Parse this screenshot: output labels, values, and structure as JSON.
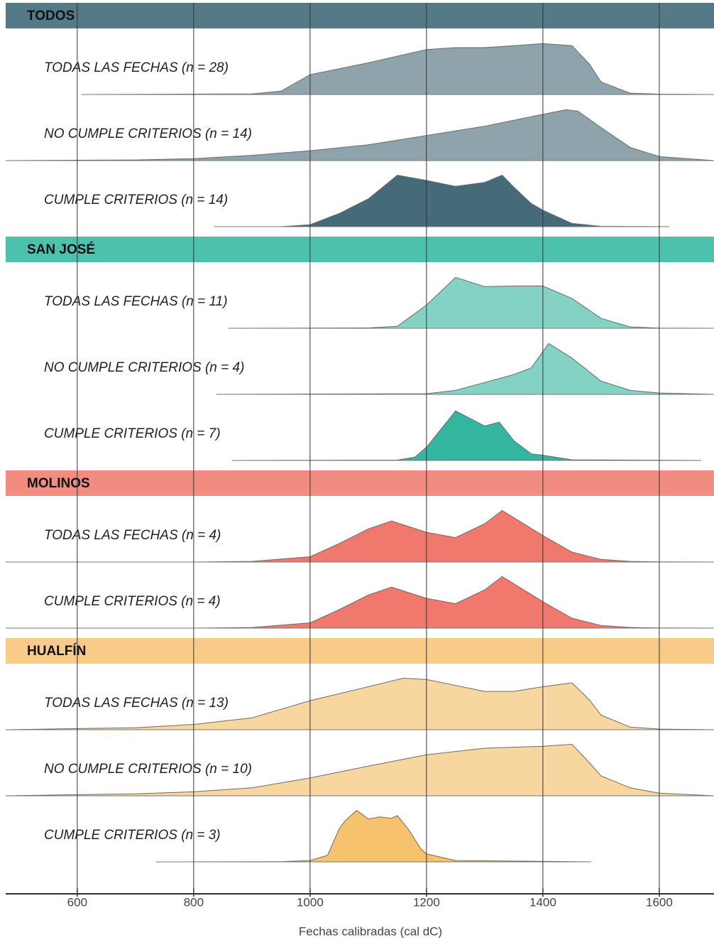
{
  "chart_data": {
    "type": "ridgeline",
    "xlabel": "Fechas calibradas (cal dC)",
    "xlim": [
      477,
      1694
    ],
    "xticks": [
      600,
      800,
      1000,
      1200,
      1400,
      1600
    ],
    "ylim": [
      0,
      100
    ],
    "grid": true,
    "groups": [
      {
        "name": "TODOS",
        "color": "#557a87",
        "rows": [
          {
            "label": "TODAS LAS FECHAS (n = 28)",
            "color": "#8ea3ab",
            "x": [
              607,
              900,
              950,
              1000,
              1100,
              1200,
              1250,
              1300,
              1350,
              1400,
              1450,
              1480,
              1500,
              1550,
              1600,
              1694
            ],
            "values": [
              0,
              1,
              5,
              30,
              48,
              68,
              71,
              71,
              74,
              77,
              74,
              46,
              19,
              2,
              0.5,
              0
            ]
          },
          {
            "label": "NO CUMPLE CRITERIOS (n = 14)",
            "color": "#8ea3ab",
            "x": [
              477,
              700,
              800,
              900,
              1000,
              1100,
              1200,
              1300,
              1400,
              1440,
              1460,
              1500,
              1550,
              1600,
              1694
            ],
            "values": [
              0,
              1,
              3,
              8,
              15,
              24,
              38,
              52,
              70,
              77,
              75,
              50,
              20,
              6,
              0
            ]
          },
          {
            "label": "CUMPLE CRITERIOS (n = 14)",
            "color": "#466b78",
            "x": [
              835,
              950,
              1000,
              1050,
              1100,
              1150,
              1200,
              1250,
              1300,
              1330,
              1350,
              1380,
              1400,
              1450,
              1500,
              1617
            ],
            "values": [
              0,
              0,
              3,
              20,
              42,
              78,
              70,
              61,
              67,
              78,
              60,
              35,
              25,
              5,
              0.5,
              0
            ]
          }
        ]
      },
      {
        "name": "SAN JOSÉ",
        "color": "#4cc2ad",
        "rows": [
          {
            "label": "TODAS LAS FECHAS (n = 11)",
            "color": "#83d2c4",
            "x": [
              860,
              1100,
              1150,
              1200,
              1250,
              1300,
              1350,
              1400,
              1450,
              1500,
              1550,
              1600,
              1694
            ],
            "values": [
              0,
              0.5,
              3,
              35,
              77,
              63,
              64,
              64,
              45,
              15,
              2,
              0.3,
              0
            ]
          },
          {
            "label": "NO CUMPLE CRITERIOS (n = 4)",
            "color": "#83d2c4",
            "x": [
              839,
              1200,
              1250,
              1300,
              1350,
              1380,
              1410,
              1450,
              1500,
              1550,
              1600,
              1694
            ],
            "values": [
              0,
              1,
              6,
              18,
              30,
              40,
              77,
              55,
              20,
              6,
              2,
              0
            ]
          },
          {
            "label": "CUMPLE CRITERIOS (n = 7)",
            "color": "#33b5a0",
            "x": [
              866,
              1150,
              1180,
              1200,
              1250,
              1300,
              1325,
              1350,
              1380,
              1400,
              1450,
              1672
            ],
            "values": [
              0,
              0.5,
              5,
              20,
              75,
              52,
              58,
              30,
              10,
              8,
              1,
              0
            ]
          }
        ]
      },
      {
        "name": "MOLINOS",
        "color": "#f28b80",
        "rows": [
          {
            "label": "TODAS LAS FECHAS (n = 4)",
            "color": "#f1786d",
            "x": [
              477,
              800,
              900,
              1000,
              1050,
              1100,
              1140,
              1200,
              1250,
              1300,
              1330,
              1400,
              1450,
              1500,
              1550,
              1600,
              1694
            ],
            "values": [
              0,
              0,
              1,
              8,
              28,
              50,
              62,
              45,
              37,
              58,
              78,
              40,
              15,
              4,
              1,
              0.3,
              0
            ]
          },
          {
            "label": "CUMPLE CRITERIOS (n = 4)",
            "color": "#f1786d",
            "x": [
              477,
              800,
              900,
              1000,
              1050,
              1100,
              1140,
              1200,
              1250,
              1300,
              1330,
              1400,
              1450,
              1500,
              1550,
              1600,
              1694
            ],
            "values": [
              0,
              0,
              1,
              8,
              28,
              50,
              62,
              45,
              37,
              58,
              78,
              40,
              15,
              4,
              1,
              0.3,
              0
            ]
          }
        ]
      },
      {
        "name": "HUALFÍN",
        "color": "#f8cc88",
        "rows": [
          {
            "label": "TODAS LAS FECHAS (n = 13)",
            "color": "#f8d6a0",
            "x": [
              477,
              700,
              800,
              900,
              1000,
              1100,
              1160,
              1200,
              1300,
              1350,
              1400,
              1450,
              1480,
              1500,
              1550,
              1600,
              1694
            ],
            "values": [
              0,
              3,
              8,
              18,
              44,
              65,
              78,
              76,
              58,
              58,
              65,
              71,
              45,
              22,
              4,
              1,
              0
            ]
          },
          {
            "label": "NO CUMPLE CRITERIOS (n = 10)",
            "color": "#f8d6a0",
            "x": [
              477,
              700,
              800,
              900,
              1000,
              1100,
              1200,
              1300,
              1400,
              1450,
              1480,
              1500,
              1550,
              1600,
              1694
            ],
            "values": [
              0,
              3,
              6,
              12,
              27,
              45,
              62,
              72,
              75,
              78,
              50,
              30,
              12,
              4,
              0
            ]
          },
          {
            "label": "CUMPLE CRITERIOS (n = 3)",
            "color": "#f6c26e",
            "x": [
              735,
              950,
              1000,
              1030,
              1050,
              1060,
              1080,
              1100,
              1120,
              1140,
              1150,
              1170,
              1190,
              1200,
              1250,
              1483
            ],
            "values": [
              0,
              0.3,
              2,
              10,
              50,
              62,
              78,
              65,
              68,
              66,
              70,
              48,
              20,
              12,
              2,
              0
            ]
          }
        ]
      }
    ]
  }
}
